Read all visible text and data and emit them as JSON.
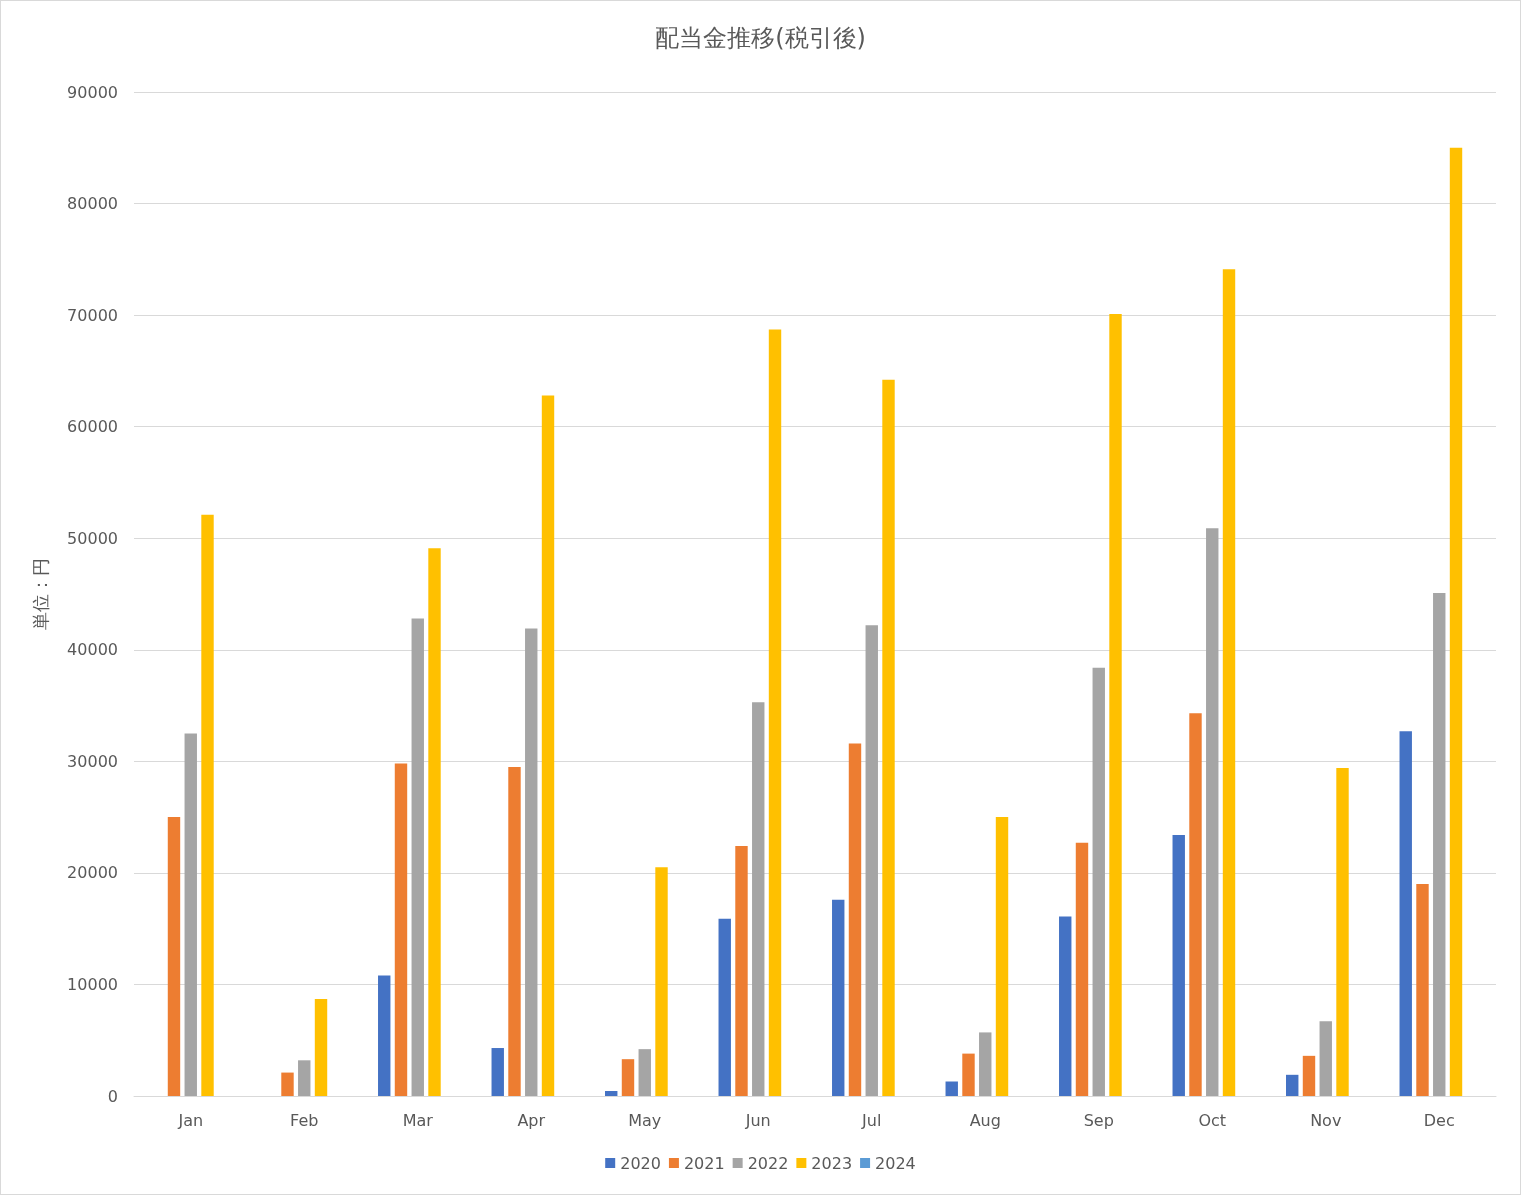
{
  "chart_data": {
    "type": "bar",
    "title": "配当金推移(税引後)",
    "ylabel": "単位：円",
    "categories": [
      "Jan",
      "Feb",
      "Mar",
      "Apr",
      "May",
      "Jun",
      "Jul",
      "Aug",
      "Sep",
      "Oct",
      "Nov",
      "Dec"
    ],
    "series": [
      {
        "name": "2020",
        "color": "#4472c4",
        "values": [
          null,
          null,
          10800,
          4300,
          450,
          15900,
          17600,
          1300,
          16100,
          23400,
          1900,
          32700
        ]
      },
      {
        "name": "2021",
        "color": "#ed7d31",
        "values": [
          25000,
          2100,
          29800,
          29500,
          3300,
          22400,
          31600,
          3800,
          22700,
          34300,
          3600,
          19000
        ]
      },
      {
        "name": "2022",
        "color": "#a5a5a5",
        "values": [
          32500,
          3200,
          42800,
          41900,
          4200,
          35300,
          42200,
          5700,
          38400,
          50900,
          6700,
          45100
        ]
      },
      {
        "name": "2023",
        "color": "#ffc000",
        "values": [
          52100,
          8700,
          49100,
          62800,
          20500,
          68700,
          64200,
          25000,
          70100,
          74100,
          29400,
          85000
        ]
      },
      {
        "name": "2024",
        "color": "#5b9bd5",
        "values": [
          null,
          null,
          null,
          null,
          null,
          null,
          null,
          null,
          null,
          null,
          null,
          null
        ]
      }
    ],
    "ylim": [
      0,
      90000
    ],
    "yticks": [
      0,
      10000,
      20000,
      30000,
      40000,
      50000,
      60000,
      70000,
      80000,
      90000
    ],
    "grid": "y",
    "legend": "bottom"
  }
}
